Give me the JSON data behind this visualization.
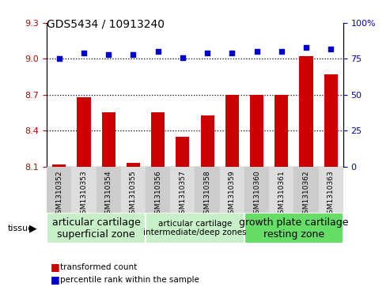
{
  "title": "GDS5434 / 10913240",
  "samples": [
    "GSM1310352",
    "GSM1310353",
    "GSM1310354",
    "GSM1310355",
    "GSM1310356",
    "GSM1310357",
    "GSM1310358",
    "GSM1310359",
    "GSM1310360",
    "GSM1310361",
    "GSM1310362",
    "GSM1310363"
  ],
  "bar_values": [
    8.12,
    8.68,
    8.55,
    8.13,
    8.55,
    8.35,
    8.53,
    8.7,
    8.7,
    8.7,
    9.02,
    8.87
  ],
  "dot_values": [
    75,
    79,
    78,
    78,
    80,
    76,
    79,
    79,
    80,
    80,
    83,
    82
  ],
  "bar_color": "#cc0000",
  "dot_color": "#0000cc",
  "ylim_left": [
    8.1,
    9.3
  ],
  "ylim_right": [
    0,
    100
  ],
  "yticks_left": [
    8.1,
    8.4,
    8.7,
    9.0,
    9.3
  ],
  "yticks_right": [
    0,
    25,
    50,
    75,
    100
  ],
  "hlines": [
    9.0,
    8.7,
    8.4
  ],
  "group_labels": [
    "articular cartilage\nsuperficial zone",
    "articular cartilage\nintermediate/deep zones",
    "growth plate cartilage\nresting zone"
  ],
  "group_starts": [
    0,
    4,
    8
  ],
  "group_ends": [
    3,
    7,
    11
  ],
  "group_colors": [
    "#c8f0c8",
    "#c8f0c8",
    "#66dd66"
  ],
  "group_fontsizes": [
    9,
    7.5,
    9
  ],
  "tissue_label": "tissue",
  "legend_bar_label": "transformed count",
  "legend_dot_label": "percentile rank within the sample",
  "tick_color_even": "#cccccc",
  "tick_color_odd": "#dddddd"
}
